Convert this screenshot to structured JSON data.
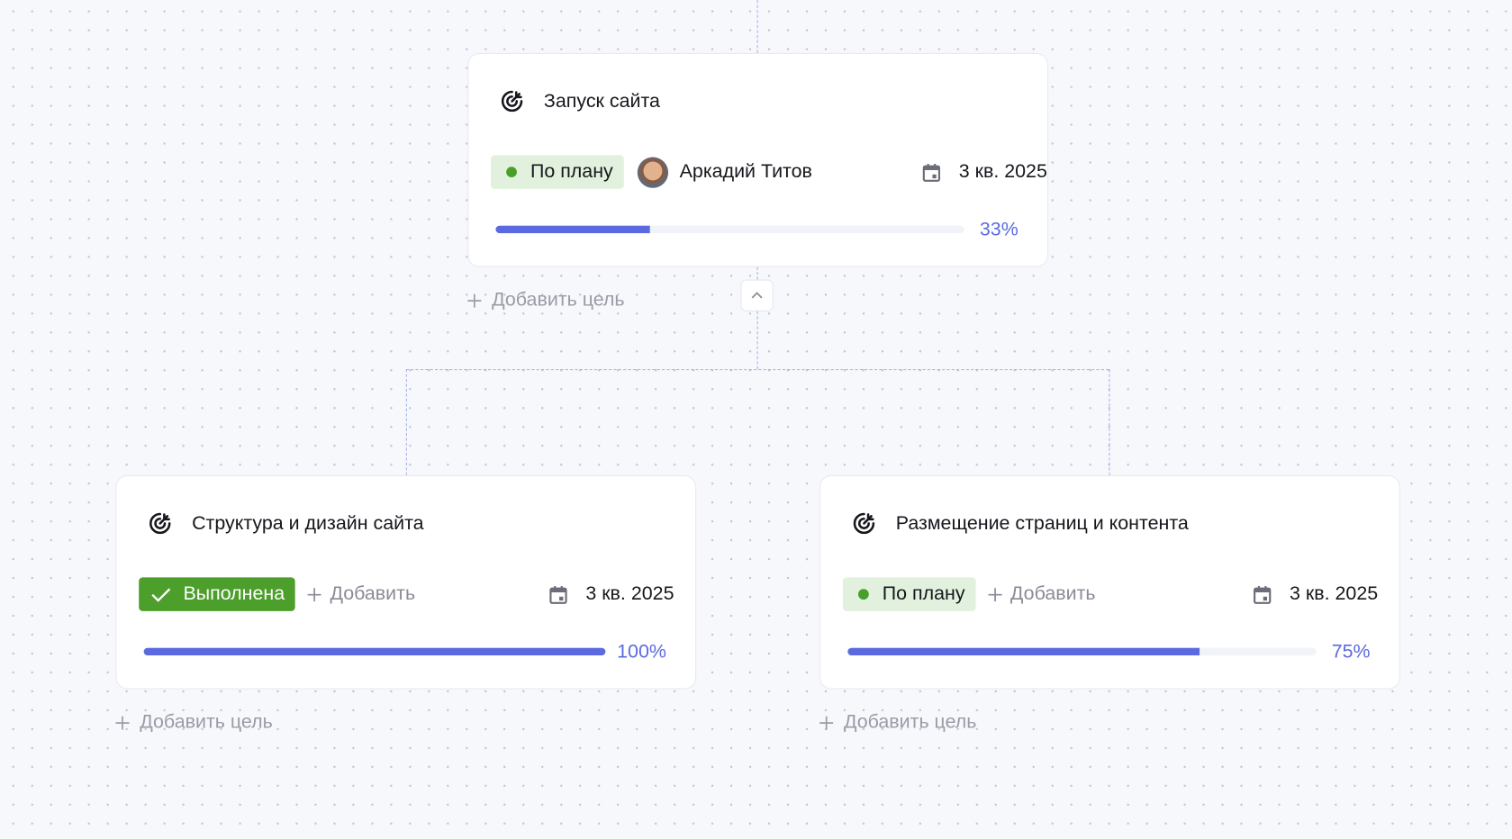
{
  "colors": {
    "accent": "#5b6ae0",
    "on_plan_bg": "#e2f1de",
    "on_plan_dot": "#4a9e2a",
    "done_bg": "#4c9f2a"
  },
  "goals": [
    {
      "title": "Запуск сайта",
      "icon": "goal-target-icon",
      "status": "По плану",
      "owner": "Аркадий Титов",
      "date": "3 кв. 2025",
      "progress": 33,
      "progress_label": "33%",
      "add_goal": "Добавить цель"
    },
    {
      "title": "Структура и дизайн сайта",
      "icon": "goal-target-icon",
      "status": "Выполнена",
      "add_label": "Добавить",
      "date": "3 кв. 2025",
      "progress": 100,
      "progress_label": "100%",
      "add_goal": "Добавить цель"
    },
    {
      "title": "Размещение страниц и контента",
      "icon": "goal-target-icon",
      "status": "По плану",
      "add_label": "Добавить",
      "date": "3 кв. 2025",
      "progress": 75,
      "progress_label": "75%",
      "add_goal": "Добавить цель"
    }
  ]
}
